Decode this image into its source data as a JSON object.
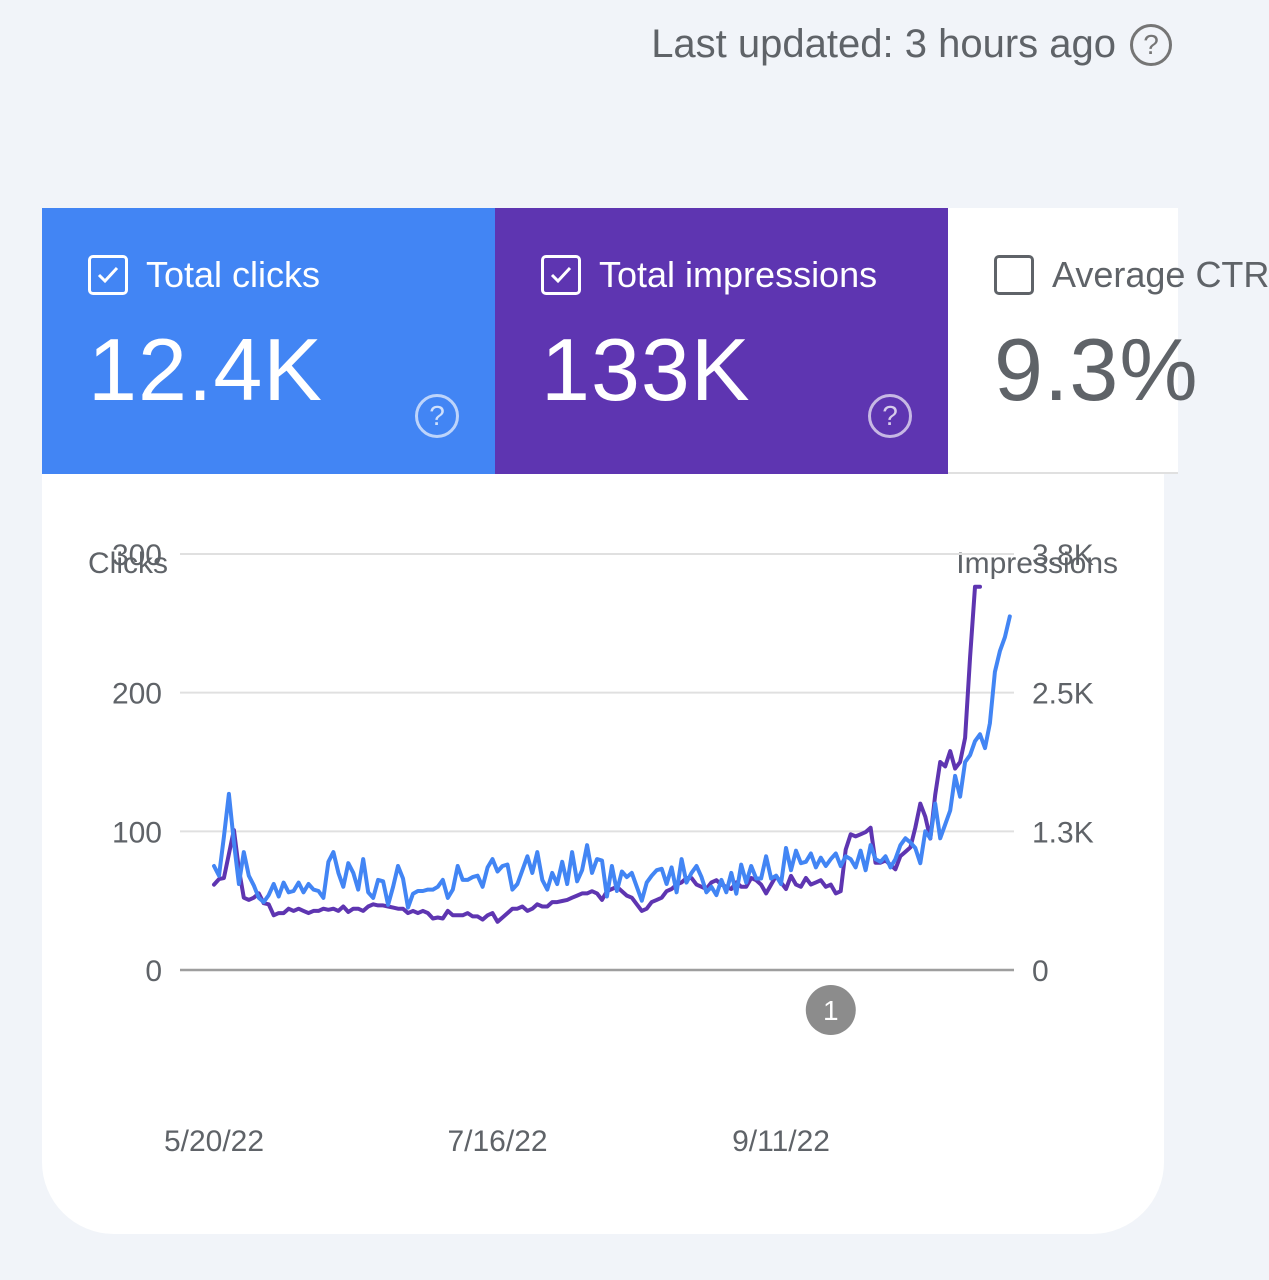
{
  "header": {
    "last_updated": "Last updated: 3 hours ago",
    "help_icon": "help-circle-icon"
  },
  "metric_tiles": [
    {
      "label": "Total clicks",
      "value": "12.4K",
      "checked": true,
      "color": "#4285f4"
    },
    {
      "label": "Total impressions",
      "value": "133K",
      "checked": true,
      "color": "#5e35b1"
    },
    {
      "label": "Average CTR",
      "value": "9.3%",
      "checked": false,
      "color": "#ffffff"
    }
  ],
  "chart_data": {
    "type": "line",
    "y_left_label": "Clicks",
    "y_right_label": "Impressions",
    "y_left_ticks": [
      "300",
      "200",
      "100",
      "0"
    ],
    "y_right_ticks": [
      "3.8K",
      "2.5K",
      "1.3K",
      "0"
    ],
    "ylim_left": [
      0,
      300
    ],
    "ylim_right": [
      0,
      3800
    ],
    "x_tick_labels": [
      "5/20/22",
      "7/16/22",
      "9/11/22"
    ],
    "x_tick_index": [
      0,
      57,
      114
    ],
    "grid": true,
    "annotation": {
      "label": "1",
      "index": 124
    },
    "series": [
      {
        "name": "Impressions",
        "axis": "right",
        "color": "#5e35b1",
        "values": [
          780,
          830,
          840,
          1060,
          1280,
          920,
          660,
          640,
          660,
          700,
          610,
          600,
          500,
          520,
          520,
          560,
          540,
          560,
          540,
          520,
          540,
          540,
          560,
          550,
          560,
          540,
          580,
          530,
          560,
          560,
          540,
          580,
          600,
          590,
          590,
          580,
          570,
          560,
          560,
          520,
          540,
          520,
          540,
          520,
          470,
          480,
          470,
          540,
          500,
          500,
          500,
          520,
          490,
          490,
          460,
          500,
          520,
          440,
          480,
          520,
          560,
          560,
          580,
          540,
          560,
          600,
          580,
          580,
          620,
          620,
          630,
          640,
          660,
          680,
          700,
          700,
          720,
          700,
          640,
          720,
          740,
          760,
          720,
          680,
          660,
          600,
          540,
          560,
          620,
          640,
          660,
          720,
          740,
          780,
          800,
          840,
          840,
          780,
          760,
          740,
          800,
          820,
          780,
          760,
          740,
          800,
          760,
          760,
          840,
          820,
          780,
          700,
          780,
          860,
          800,
          740,
          860,
          780,
          760,
          840,
          780,
          800,
          820,
          760,
          780,
          700,
          720,
          1100,
          1240,
          1220,
          1240,
          1260,
          1300,
          980,
          980,
          1000,
          960,
          920,
          1040,
          1080,
          1120,
          1300,
          1520,
          1400,
          1200,
          1600,
          1900,
          1860,
          2000,
          1840,
          1900,
          2120,
          2860,
          3500,
          3500
        ]
      },
      {
        "name": "Clicks",
        "axis": "left",
        "color": "#4285f4",
        "values": [
          75,
          68,
          96,
          127,
          92,
          62,
          85,
          68,
          61,
          52,
          49,
          54,
          62,
          53,
          63,
          56,
          57,
          63,
          56,
          62,
          58,
          57,
          52,
          78,
          85,
          70,
          60,
          77,
          70,
          58,
          80,
          56,
          52,
          65,
          64,
          47,
          60,
          75,
          66,
          45,
          55,
          57,
          57,
          58,
          58,
          60,
          65,
          52,
          58,
          75,
          65,
          65,
          67,
          68,
          60,
          74,
          80,
          71,
          75,
          76,
          58,
          62,
          72,
          82,
          70,
          85,
          65,
          58,
          70,
          62,
          78,
          62,
          85,
          64,
          72,
          90,
          70,
          80,
          79,
          53,
          75,
          57,
          71,
          67,
          70,
          60,
          50,
          63,
          68,
          72,
          73,
          62,
          74,
          56,
          80,
          63,
          70,
          75,
          67,
          56,
          60,
          54,
          65,
          56,
          70,
          55,
          76,
          63,
          75,
          66,
          66,
          82,
          66,
          68,
          62,
          88,
          72,
          86,
          77,
          78,
          84,
          74,
          81,
          75,
          80,
          84,
          75,
          82,
          80,
          74,
          86,
          72,
          90,
          80,
          78,
          82,
          74,
          80,
          90,
          95,
          92,
          88,
          77,
          100,
          95,
          120,
          95,
          105,
          115,
          140,
          125,
          150,
          155,
          165,
          170,
          160,
          178,
          215,
          230,
          240,
          255
        ]
      }
    ]
  }
}
